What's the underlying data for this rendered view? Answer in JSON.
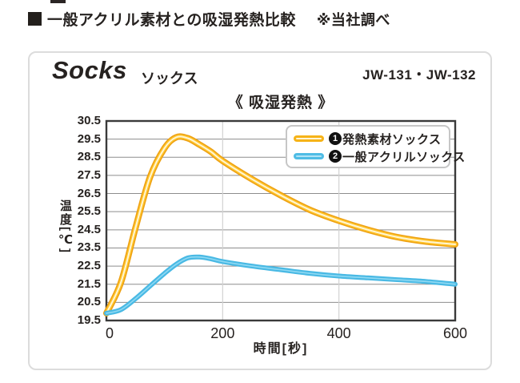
{
  "header": {
    "bullet": "■",
    "title": "一般アクリル素材との吸湿発熱比較",
    "note": "※当社調べ"
  },
  "panel": {
    "product_name_en": "Socks",
    "product_name_jp": "ソックス",
    "model_numbers": "JW-131・JW-132",
    "chart_title": "《 吸湿発熱 》"
  },
  "legend": {
    "items": [
      {
        "number": "1",
        "label": "発熱素材ソックス",
        "color": "#F6B318",
        "core_color": "#FFF6D6"
      },
      {
        "number": "2",
        "label": "一般アクリルソックス",
        "color": "#4FBCE5",
        "core_color": "#AEE3F6"
      }
    ]
  },
  "colors": {
    "grid_horizontal": "#8d8d8d",
    "grid_vertical": "#d2d2d2",
    "plot_border": "#3a3a3a",
    "text": "#262220",
    "panel_border": "#dcdcdc"
  },
  "chart_data": {
    "type": "line",
    "title": "《 吸湿発熱 》",
    "xlabel": "時間[秒]",
    "ylabel": "温度[℃]",
    "xlim": [
      0,
      600
    ],
    "ylim": [
      19.5,
      30.5
    ],
    "xticks": [
      0,
      200,
      400,
      600
    ],
    "yticks": [
      30.5,
      29.5,
      28.5,
      27.5,
      26.5,
      25.5,
      24.5,
      23.5,
      22.5,
      21.5,
      20.5,
      19.5
    ],
    "grid": "horizontal every 1.0°C, vertical at 200 and 400",
    "legend_position": "top-right inside plot",
    "x": [
      0,
      25,
      50,
      75,
      100,
      120,
      140,
      160,
      180,
      200,
      250,
      300,
      350,
      400,
      450,
      500,
      550,
      600
    ],
    "series": [
      {
        "name": "❶発熱素材ソックス",
        "peak": {
          "x": 120,
          "y": 29.6
        },
        "values": [
          19.9,
          21.6,
          24.6,
          27.4,
          29.0,
          29.6,
          29.55,
          29.2,
          28.8,
          28.3,
          27.3,
          26.4,
          25.6,
          25.0,
          24.5,
          24.1,
          23.85,
          23.7
        ],
        "stroke_layers": [
          {
            "color": "#EDA012",
            "width": 8
          },
          {
            "color": "#FFC52E",
            "width": 5
          },
          {
            "color": "#FFF6D6",
            "width": 2
          }
        ]
      },
      {
        "name": "❷一般アクリルソックス",
        "peak": {
          "x": 150,
          "y": 23.0
        },
        "values": [
          19.9,
          20.1,
          20.7,
          21.4,
          22.1,
          22.6,
          22.95,
          23.0,
          22.9,
          22.75,
          22.5,
          22.3,
          22.1,
          21.95,
          21.85,
          21.75,
          21.65,
          21.5
        ],
        "stroke_layers": [
          {
            "color": "#49B9E4",
            "width": 6
          },
          {
            "color": "#8FD9F3",
            "width": 1.6
          }
        ]
      }
    ]
  }
}
